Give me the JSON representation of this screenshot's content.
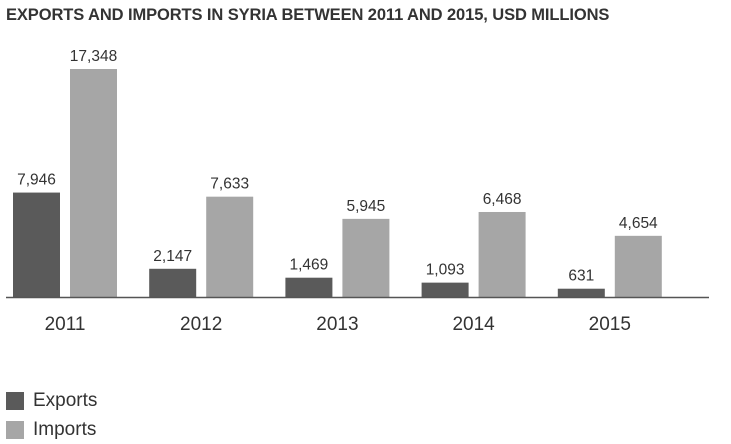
{
  "chart_data": {
    "type": "bar",
    "title": "EXPORTS AND IMPORTS IN SYRIA BETWEEN 2011 AND 2015, USD MILLIONS",
    "categories": [
      "2011",
      "2012",
      "2013",
      "2014",
      "2015"
    ],
    "series": [
      {
        "name": "Exports",
        "values": [
          7946,
          2147,
          1469,
          1093,
          631
        ],
        "labels": [
          "7,946",
          "2,147",
          "1,469",
          "1,093",
          "631"
        ],
        "color": "#5a5a5a"
      },
      {
        "name": "Imports",
        "values": [
          17348,
          7633,
          5945,
          6468,
          4654
        ],
        "labels": [
          "17,348",
          "7,633",
          "5,945",
          "6,468",
          "4,654"
        ],
        "color": "#a6a6a6"
      }
    ],
    "ylim": [
      0,
      17348
    ],
    "grid": false,
    "legend_position": "bottom-left"
  }
}
